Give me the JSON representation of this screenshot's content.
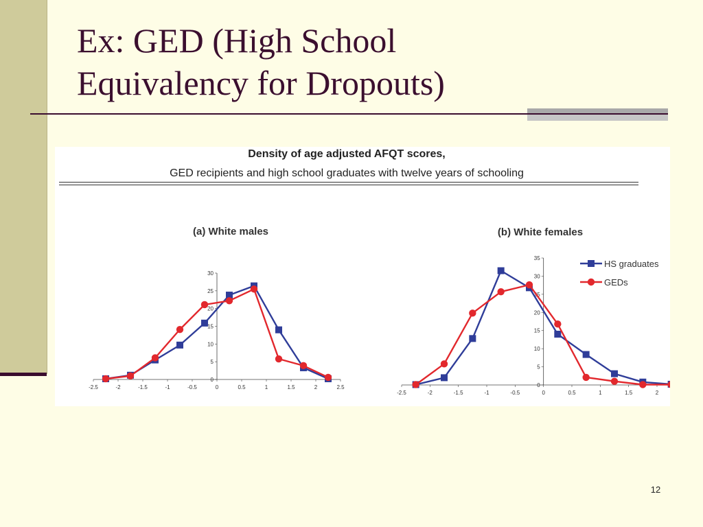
{
  "slide": {
    "title_line1": "Ex: GED (High School",
    "title_line2": "Equivalency for Dropouts)",
    "page_number": "12"
  },
  "figure": {
    "title": "Density of age adjusted AFQT scores,",
    "subtitle": "GED recipients and high school graduates with twelve years of schooling"
  },
  "colors": {
    "hs_graduates": "#2f3d99",
    "geds": "#e2282d"
  },
  "chart_data": [
    {
      "type": "line",
      "title": "(a) White males",
      "xlabel": "",
      "ylabel": "",
      "xlim": [
        -2.5,
        2.5
      ],
      "ylim": [
        0,
        30
      ],
      "x_ticks": [
        -2.5,
        -2,
        -1.5,
        -1,
        -0.5,
        0,
        0.5,
        1,
        1.5,
        2,
        2.5
      ],
      "y_ticks": [
        0,
        5,
        10,
        15,
        20,
        25,
        30
      ],
      "grid": false,
      "series": [
        {
          "name": "HS graduates",
          "marker": "square",
          "x": [
            -2.25,
            -1.75,
            -1.25,
            -0.75,
            -0.25,
            0.25,
            0.75,
            1.25,
            1.75,
            2.25
          ],
          "y": [
            0.2,
            1.2,
            5.5,
            9.7,
            15.9,
            23.8,
            26.4,
            14.0,
            3.3,
            0.2
          ]
        },
        {
          "name": "GEDs",
          "marker": "circle",
          "x": [
            -2.25,
            -1.75,
            -1.25,
            -0.75,
            -0.25,
            0.25,
            0.75,
            1.25,
            1.75,
            2.25
          ],
          "y": [
            0.2,
            1.0,
            6.1,
            14.1,
            21.1,
            22.2,
            25.5,
            5.8,
            3.9,
            0.6
          ]
        }
      ]
    },
    {
      "type": "line",
      "title": "(b) White females",
      "xlabel": "",
      "ylabel": "",
      "xlim": [
        -2.5,
        2
      ],
      "ylim": [
        0,
        35
      ],
      "x_ticks": [
        -2.5,
        -2,
        -1.5,
        -1,
        -0.5,
        0,
        0.5,
        1,
        1.5,
        2
      ],
      "y_ticks": [
        0,
        5,
        10,
        15,
        20,
        25,
        30,
        35
      ],
      "grid": false,
      "legend": "top-right",
      "series": [
        {
          "name": "HS graduates",
          "marker": "square",
          "x": [
            -2.25,
            -1.75,
            -1.25,
            -0.75,
            -0.25,
            0.25,
            0.75,
            1.25,
            1.75,
            2.25
          ],
          "y": [
            0.1,
            2.0,
            12.8,
            31.5,
            26.8,
            14.0,
            8.4,
            3.1,
            0.8,
            0.2
          ]
        },
        {
          "name": "GEDs",
          "marker": "circle",
          "x": [
            -2.25,
            -1.75,
            -1.25,
            -0.75,
            -0.25,
            0.25,
            0.75,
            1.25,
            1.75,
            2.25
          ],
          "y": [
            0.1,
            5.8,
            19.8,
            25.7,
            27.6,
            16.8,
            2.1,
            1.0,
            0.1,
            0.1
          ]
        }
      ]
    }
  ]
}
